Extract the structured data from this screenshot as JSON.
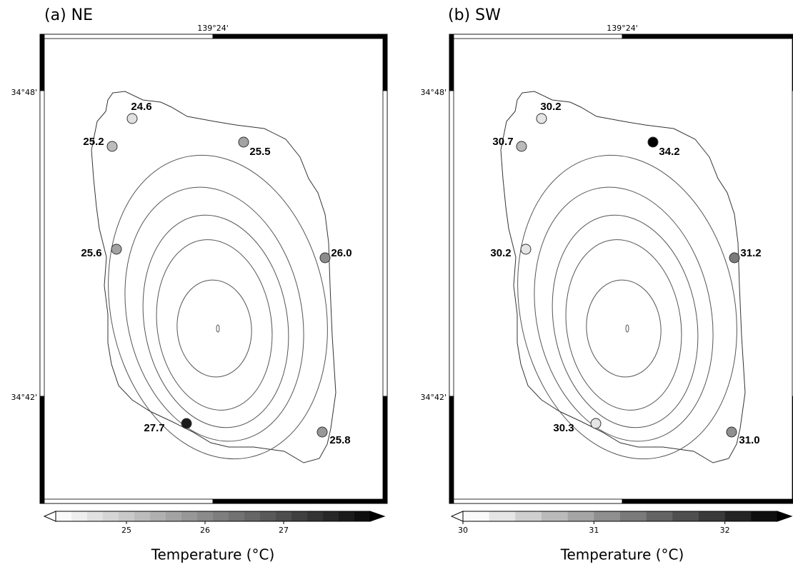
{
  "panels": [
    {
      "title": "(a) NE",
      "lon_label": "139°24'",
      "lat_labels": [
        "34°48'",
        "34°42'"
      ],
      "stations": [
        {
          "value": 24.6,
          "label": "24.6"
        },
        {
          "value": 25.2,
          "label": "25.2"
        },
        {
          "value": 25.5,
          "label": "25.5"
        },
        {
          "value": 25.6,
          "label": "25.6"
        },
        {
          "value": 26.0,
          "label": "26.0"
        },
        {
          "value": 27.7,
          "label": "27.7"
        },
        {
          "value": 25.8,
          "label": "25.8"
        }
      ],
      "colorbar": {
        "lim": [
          24.1,
          28.1
        ],
        "step": 0.2,
        "ticks": [
          25,
          26,
          27
        ],
        "label": "Temperature (°C)"
      }
    },
    {
      "title": "(b) SW",
      "lon_label": "139°24'",
      "lat_labels": [
        "34°48'",
        "34°42'"
      ],
      "stations": [
        {
          "value": 30.2,
          "label": "30.2"
        },
        {
          "value": 30.7,
          "label": "30.7"
        },
        {
          "value": 34.2,
          "label": "34.2"
        },
        {
          "value": 30.2,
          "label": "30.2"
        },
        {
          "value": 31.2,
          "label": "31.2"
        },
        {
          "value": 30.3,
          "label": "30.3"
        },
        {
          "value": 31.0,
          "label": "31.0"
        }
      ],
      "colorbar": {
        "lim": [
          30,
          32.4
        ],
        "step": 0.2,
        "ticks": [
          30,
          31,
          32
        ],
        "label": "Temperature (°C)"
      }
    }
  ]
}
